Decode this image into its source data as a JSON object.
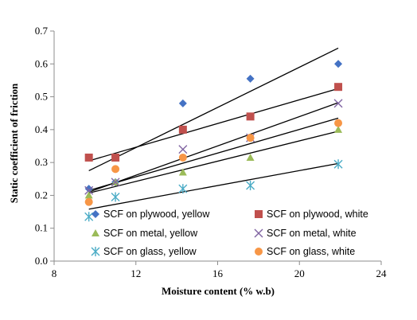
{
  "chart_data": {
    "type": "scatter",
    "xlabel": "Moisture content (% w.b)",
    "ylabel": "Static coefficient of friction",
    "xlim": [
      8,
      24
    ],
    "ylim": [
      0,
      0.7
    ],
    "x_ticks": [
      "8",
      "12",
      "16",
      "20",
      "24"
    ],
    "y_ticks": [
      "0.0",
      "0.1",
      "0.2",
      "0.3",
      "0.4",
      "0.5",
      "0.6",
      "0.7"
    ],
    "grid": false,
    "legend_placement": "inside-bottom",
    "x": [
      9.7,
      11.0,
      14.3,
      17.6,
      21.9
    ],
    "series": [
      {
        "name": "SCF on plywood, yellow",
        "marker": "diamond",
        "color": "#4472C4",
        "values": [
          0.22,
          0.24,
          0.48,
          0.555,
          0.6
        ],
        "trendline": [
          [
            9.7,
            0.275
          ],
          [
            21.9,
            0.648
          ]
        ]
      },
      {
        "name": "SCF on plywood, white",
        "marker": "square",
        "color": "#C0504D",
        "values": [
          0.315,
          0.315,
          0.4,
          0.44,
          0.53
        ],
        "trendline": [
          [
            9.7,
            0.305
          ],
          [
            21.9,
            0.525
          ]
        ]
      },
      {
        "name": "SCF on metal, yellow",
        "marker": "triangle",
        "color": "#9BBB59",
        "values": [
          0.2,
          0.24,
          0.27,
          0.315,
          0.4
        ],
        "trendline": [
          [
            9.7,
            0.207
          ],
          [
            21.9,
            0.395
          ]
        ]
      },
      {
        "name": "SCF on metal, white",
        "marker": "x",
        "color": "#8064A2",
        "values": [
          0.215,
          0.24,
          0.34,
          0.375,
          0.48
        ],
        "trendline": [
          [
            9.7,
            0.21
          ],
          [
            21.9,
            0.482
          ]
        ]
      },
      {
        "name": "SCF on glass, yellow",
        "marker": "asterisk",
        "color": "#4BACC6",
        "values": [
          0.135,
          0.195,
          0.22,
          0.23,
          0.295
        ],
        "trendline": [
          [
            9.7,
            0.158
          ],
          [
            21.9,
            0.297
          ]
        ]
      },
      {
        "name": "SCF on glass, white",
        "marker": "circle",
        "color": "#F79646",
        "values": [
          0.18,
          0.28,
          0.315,
          0.375,
          0.42
        ],
        "trendline": [
          [
            9.7,
            0.215
          ],
          [
            21.9,
            0.435
          ]
        ]
      }
    ]
  }
}
